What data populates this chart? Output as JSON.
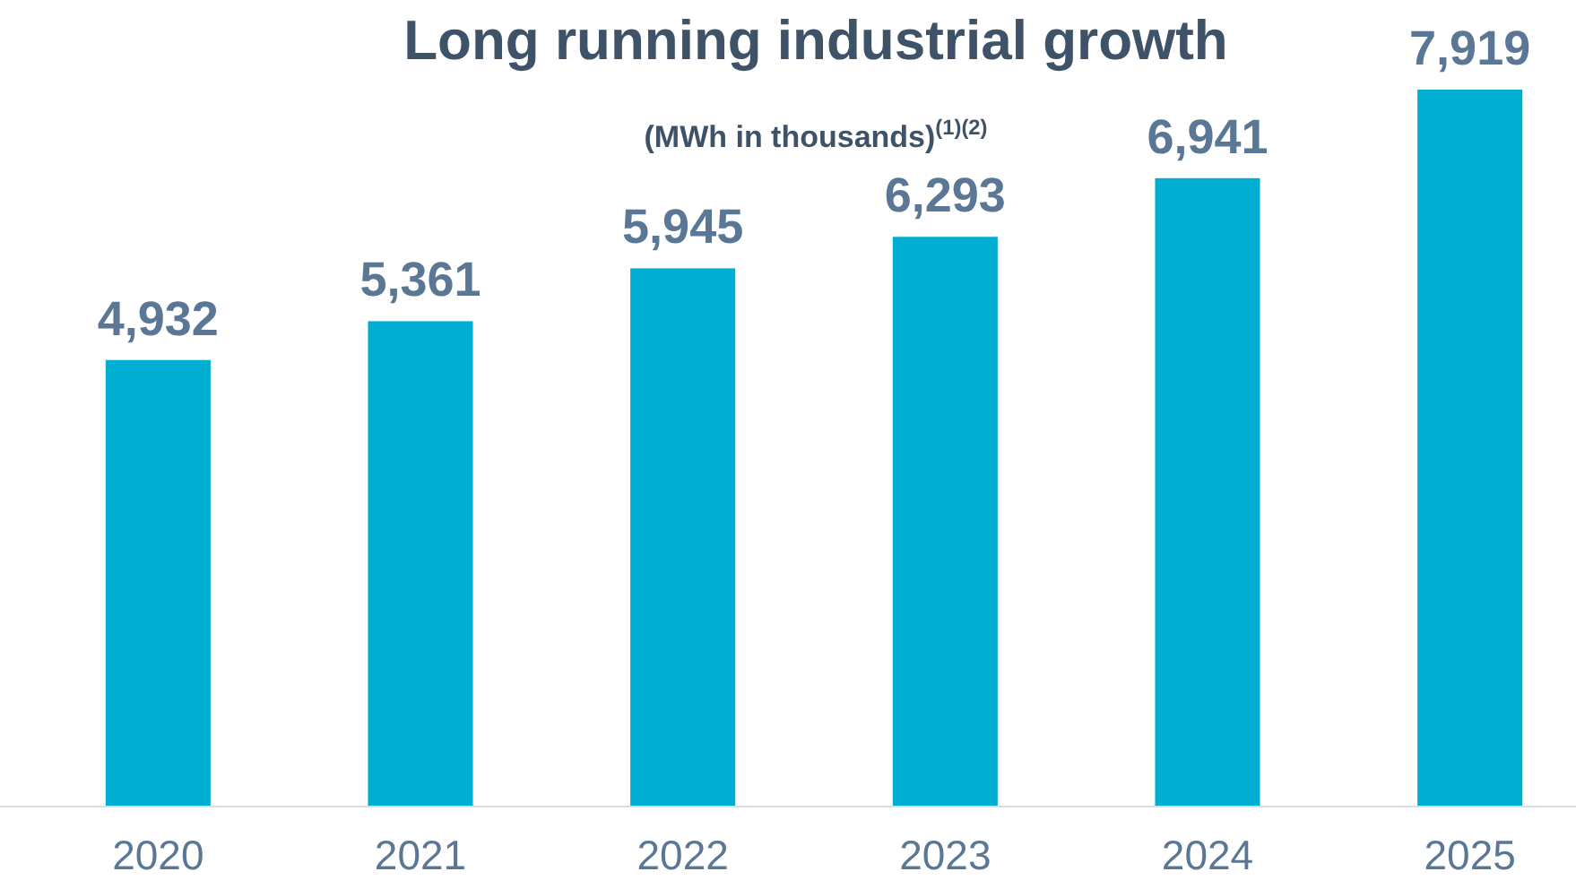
{
  "chart_data": {
    "type": "bar",
    "title": "Long running industrial growth",
    "subtitle": "(MWh in thousands)$^{(1)(2)}$",
    "categories": [
      "2020",
      "2021",
      "2022",
      "2023",
      "2024",
      "2025"
    ],
    "values": [
      4932,
      5361,
      5945,
      6293,
      6941,
      7919
    ],
    "color": "#00aed1",
    "value_labels": [
      "4,932",
      "5,361",
      "5,945",
      "6,293",
      "6,941",
      "7,919"
    ],
    "tick_labels": "x"
  }
}
